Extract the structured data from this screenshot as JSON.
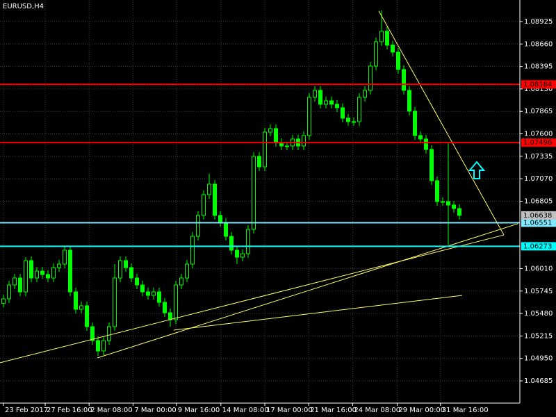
{
  "chart_data": {
    "type": "candlestick",
    "title": "EURUSD,H4",
    "ohlc": [
      [
        1.056,
        1.05703,
        1.0555,
        1.05653
      ],
      [
        1.05653,
        1.05867,
        1.05603,
        1.05817
      ],
      [
        1.05817,
        1.05949,
        1.05767,
        1.05899
      ],
      [
        1.05899,
        1.05949,
        1.05685,
        1.05735
      ],
      [
        1.05735,
        1.06145,
        1.05685,
        1.06104
      ],
      [
        1.06104,
        1.06154,
        1.05849,
        1.05899
      ],
      [
        1.05899,
        1.06031,
        1.05849,
        1.05981
      ],
      [
        1.05981,
        1.06031,
        1.0589,
        1.0594
      ],
      [
        1.0594,
        1.0599,
        1.05849,
        1.05899
      ],
      [
        1.05899,
        1.06072,
        1.05849,
        1.06022
      ],
      [
        1.06022,
        1.06113,
        1.05972,
        1.06063
      ],
      [
        1.06063,
        1.06268,
        1.06013,
        1.06227
      ],
      [
        1.06227,
        1.06277,
        1.05685,
        1.05735
      ],
      [
        1.05735,
        1.05785,
        1.0548,
        1.0553
      ],
      [
        1.0553,
        1.05621,
        1.0548,
        1.05571
      ],
      [
        1.05571,
        1.05621,
        1.05275,
        1.05325
      ],
      [
        1.05325,
        1.05375,
        1.05111,
        1.05161
      ],
      [
        1.05161,
        1.05211,
        1.04981,
        1.05038
      ],
      [
        1.05038,
        1.05211,
        1.04988,
        1.05161
      ],
      [
        1.05161,
        1.05375,
        1.05111,
        1.05325
      ],
      [
        1.05325,
        1.06063,
        1.05275,
        1.05899
      ],
      [
        1.05899,
        1.06154,
        1.05849,
        1.06104
      ],
      [
        1.06104,
        1.06154,
        1.05972,
        1.06022
      ],
      [
        1.06022,
        1.06072,
        1.05849,
        1.05899
      ],
      [
        1.05899,
        1.05949,
        1.05767,
        1.05817
      ],
      [
        1.05817,
        1.05867,
        1.05685,
        1.05735
      ],
      [
        1.05735,
        1.05785,
        1.05644,
        1.05694
      ],
      [
        1.05694,
        1.05785,
        1.05644,
        1.05735
      ],
      [
        1.05735,
        1.05785,
        1.05562,
        1.05612
      ],
      [
        1.05612,
        1.05662,
        1.05439,
        1.05489
      ],
      [
        1.05489,
        1.05539,
        1.05325,
        1.05407
      ],
      [
        1.05407,
        1.05867,
        1.05357,
        1.05817
      ],
      [
        1.05817,
        1.05949,
        1.05767,
        1.05899
      ],
      [
        1.05899,
        1.06113,
        1.05849,
        1.06063
      ],
      [
        1.06063,
        1.06441,
        1.06013,
        1.06391
      ],
      [
        1.06391,
        1.06687,
        1.06341,
        1.06637
      ],
      [
        1.06637,
        1.06933,
        1.06587,
        1.06883
      ],
      [
        1.06883,
        1.07129,
        1.06833,
        1.07006
      ],
      [
        1.07006,
        1.07056,
        1.06587,
        1.06637
      ],
      [
        1.06637,
        1.06687,
        1.06505,
        1.06555
      ],
      [
        1.06555,
        1.06605,
        1.06341,
        1.06391
      ],
      [
        1.06391,
        1.06441,
        1.06177,
        1.06227
      ],
      [
        1.06227,
        1.06277,
        1.06063,
        1.06145
      ],
      [
        1.06145,
        1.06236,
        1.06095,
        1.06186
      ],
      [
        1.06186,
        1.06523,
        1.06136,
        1.06473
      ],
      [
        1.06473,
        1.07384,
        1.06423,
        1.07334
      ],
      [
        1.07334,
        1.07384,
        1.07161,
        1.07211
      ],
      [
        1.07211,
        1.07671,
        1.07161,
        1.07621
      ],
      [
        1.07621,
        1.07712,
        1.07571,
        1.07662
      ],
      [
        1.07662,
        1.07712,
        1.07448,
        1.07498
      ],
      [
        1.07498,
        1.07548,
        1.07407,
        1.07457
      ],
      [
        1.07457,
        1.07507,
        1.07407,
        1.07457
      ],
      [
        1.07457,
        1.07589,
        1.07407,
        1.07539
      ],
      [
        1.07539,
        1.07589,
        1.07407,
        1.07457
      ],
      [
        1.07457,
        1.0763,
        1.07407,
        1.0758
      ],
      [
        1.0758,
        1.08081,
        1.0753,
        1.08031
      ],
      [
        1.08031,
        1.08163,
        1.07981,
        1.08113
      ],
      [
        1.08113,
        1.08163,
        1.07899,
        1.07949
      ],
      [
        1.07949,
        1.0804,
        1.07899,
        1.0799
      ],
      [
        1.0799,
        1.0804,
        1.07899,
        1.07949
      ],
      [
        1.07949,
        1.07999,
        1.07858,
        1.07908
      ],
      [
        1.07908,
        1.07958,
        1.07735,
        1.07785
      ],
      [
        1.07785,
        1.07835,
        1.07694,
        1.07744
      ],
      [
        1.07744,
        1.07794,
        1.07694,
        1.07744
      ],
      [
        1.07744,
        1.08081,
        1.07694,
        1.08031
      ],
      [
        1.08031,
        1.08163,
        1.07981,
        1.08113
      ],
      [
        1.08113,
        1.0845,
        1.08063,
        1.084
      ],
      [
        1.084,
        1.08737,
        1.0835,
        1.08687
      ],
      [
        1.08687,
        1.09056,
        1.08637,
        1.0881
      ],
      [
        1.0881,
        1.0886,
        1.08596,
        1.08646
      ],
      [
        1.08646,
        1.08696,
        1.08514,
        1.08564
      ],
      [
        1.08564,
        1.08614,
        1.08309,
        1.08359
      ],
      [
        1.08359,
        1.08409,
        1.08063,
        1.08113
      ],
      [
        1.08113,
        1.08163,
        1.07817,
        1.07867
      ],
      [
        1.07867,
        1.07917,
        1.0753,
        1.0758
      ],
      [
        1.0758,
        1.0763,
        1.07489,
        1.07539
      ],
      [
        1.07539,
        1.07589,
        1.07366,
        1.07416
      ],
      [
        1.07416,
        1.07466,
        1.06997,
        1.07047
      ],
      [
        1.07047,
        1.07097,
        1.06751,
        1.06801
      ],
      [
        1.06801,
        1.06851,
        1.06751,
        1.06801
      ],
      [
        1.06801,
        1.07498,
        1.06293,
        1.0676
      ],
      [
        1.0676,
        1.0681,
        1.06669,
        1.06719
      ],
      [
        1.06719,
        1.06769,
        1.06588,
        1.06638
      ]
    ],
    "bull_color": "#00ff00",
    "bear_color": "#00ff00",
    "xlim": [
      -0.625,
      92.5
    ],
    "xticks": [
      {
        "value": 0,
        "label": "23 Feb 2017"
      },
      {
        "value": 7.5,
        "label": "27 Feb 16:00"
      },
      {
        "value": 15.4,
        "label": "2 Mar 08:00"
      },
      {
        "value": 23.3,
        "label": "7 Mar 00:00"
      },
      {
        "value": 31.1,
        "label": "9 Mar 16:00"
      },
      {
        "value": 39.1,
        "label": "14 Mar 08:00"
      },
      {
        "value": 47,
        "label": "17 Mar 00:00"
      },
      {
        "value": 54.9,
        "label": "21 Mar 16:00"
      },
      {
        "value": 62.8,
        "label": "24 Mar 08:00"
      },
      {
        "value": 70.8,
        "label": "29 Mar 00:00"
      },
      {
        "value": 78.6,
        "label": "31 Mar 16:00"
      }
    ],
    "ylim": [
      1.04587,
      1.09179
    ],
    "yticks": [
      1.08925,
      {
        "value": 1.0866,
        "label": "1.08660"
      },
      1.08395,
      {
        "value": 1.0813,
        "label": "1.08130"
      },
      1.07865,
      {
        "value": 1.076,
        "label": "1.07600"
      },
      1.07335,
      {
        "value": 1.0707,
        "label": "1.07070"
      },
      1.06805,
      {
        "value": 1.0601,
        "label": "1.06010"
      },
      1.05745,
      {
        "value": 1.0548,
        "label": "1.05480"
      },
      1.05215,
      {
        "value": 1.0495,
        "label": "1.04950"
      },
      1.04685
    ],
    "grid": true,
    "levels": [
      {
        "value": 1.08184,
        "color": "#ff0000"
      },
      {
        "value": 1.07496,
        "color": "#ff0000"
      },
      {
        "value": 1.06551,
        "color": "#7fe9ff"
      },
      {
        "value": 1.06273,
        "color": "#00ffff"
      }
    ],
    "current_price": 1.06638,
    "trendlines": [
      {
        "x": [
          -0.625,
          90
        ],
        "y": [
          1.04899,
          1.06407
        ],
        "color": "#ffff66"
      },
      {
        "x": [
          16.875,
          92.5
        ],
        "y": [
          1.04956,
          1.06539
        ],
        "color": "#ffff66"
      },
      {
        "x": [
          30.625,
          82.5
        ],
        "y": [
          1.05284,
          1.05694
        ],
        "color": "#ffff66"
      },
      {
        "x": [
          67.5,
          90
        ],
        "y": [
          1.0905,
          1.06407
        ],
        "color": "#ffff66"
      }
    ]
  }
}
